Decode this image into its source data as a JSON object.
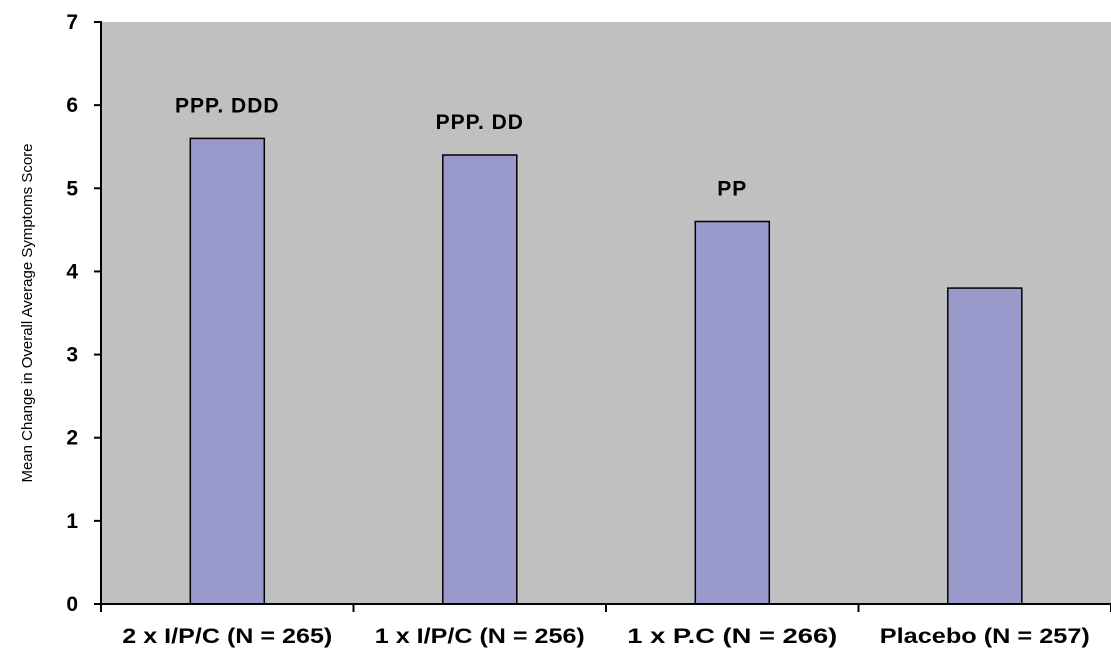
{
  "chart_data": {
    "type": "bar",
    "title": "",
    "xlabel": "",
    "ylabel": "Mean Change in Overall Average Symptoms Score",
    "categories": [
      "2 x I/P/C (N = 265)",
      "1 x I/P/C (N = 256)",
      "1 x P.C (N = 266)",
      "Placebo (N = 257)"
    ],
    "values": [
      5.6,
      5.4,
      4.6,
      3.8
    ],
    "annotations": [
      "PPP. DDD",
      "PPP. DD",
      "PP",
      ""
    ],
    "ylim": [
      0,
      7
    ],
    "yticks": [
      "0",
      "1",
      "2",
      "3",
      "4",
      "5",
      "6",
      "7"
    ],
    "grid": false,
    "legend": "none",
    "colors": {
      "plot_background": "#c0c0c0",
      "bar_fill": "#9999cc",
      "bar_stroke": "#000000",
      "axis": "#000000"
    }
  }
}
